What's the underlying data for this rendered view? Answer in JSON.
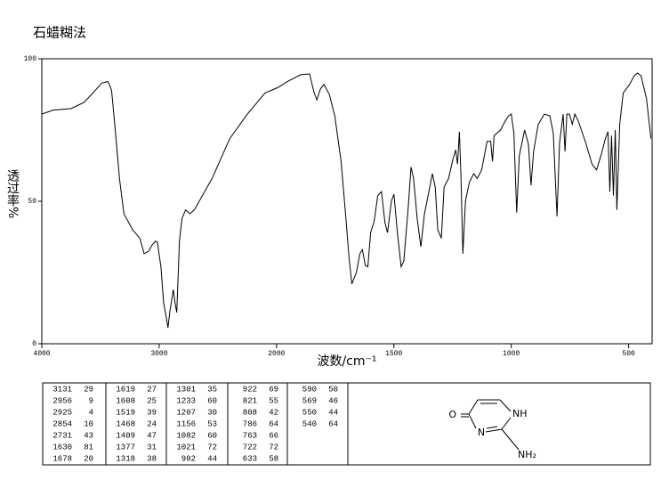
{
  "chart_data": {
    "type": "line",
    "title": "石蜡糊法",
    "x_label": "波数/cm⁻¹",
    "y_label": "透过率%",
    "color": "#000000",
    "xlim": [
      4000,
      400
    ],
    "xticks": [
      4000,
      3000,
      2000,
      1500,
      1000,
      500
    ],
    "ylim": [
      0,
      100
    ],
    "yticks": [
      0,
      50,
      100
    ],
    "x": [
      4000,
      3902,
      3752,
      3640,
      3564,
      3489,
      3436,
      3406,
      3376,
      3338,
      3300,
      3226,
      3165,
      3128,
      3090,
      3060,
      3030,
      3015,
      2985,
      2962,
      2940,
      2925,
      2910,
      2880,
      2865,
      2850,
      2827,
      2805,
      2774,
      2737,
      2700,
      2549,
      2398,
      2248,
      2098,
      1992,
      1954,
      1897,
      1859,
      1840,
      1828,
      1813,
      1798,
      1775,
      1752,
      1725,
      1706,
      1691,
      1679,
      1660,
      1645,
      1634,
      1622,
      1611,
      1599,
      1584,
      1569,
      1553,
      1538,
      1527,
      1511,
      1500,
      1485,
      1469,
      1458,
      1439,
      1427,
      1416,
      1401,
      1385,
      1370,
      1351,
      1336,
      1324,
      1313,
      1298,
      1286,
      1267,
      1248,
      1237,
      1229,
      1221,
      1214,
      1206,
      1195,
      1179,
      1160,
      1145,
      1126,
      1103,
      1088,
      1080,
      1073,
      1046,
      1027,
      1011,
      1000,
      989,
      977,
      966,
      943,
      927,
      916,
      905,
      885,
      859,
      836,
      821,
      805,
      794,
      779,
      771,
      763,
      752,
      740,
      729,
      714,
      683,
      656,
      637,
      618,
      599,
      588,
      580,
      573,
      565,
      557,
      550,
      538,
      523,
      496,
      477,
      462,
      447,
      424,
      405
    ],
    "values": [
      80.6,
      82,
      82.5,
      84.7,
      88,
      91.5,
      92,
      89,
      76,
      58,
      45.6,
      40,
      37,
      31.6,
      32.5,
      34.7,
      36,
      35.6,
      27,
      14.4,
      9.4,
      5.6,
      11,
      19,
      14.4,
      11,
      36,
      44,
      47,
      45.6,
      47,
      58,
      72,
      80.6,
      88,
      90,
      92,
      94.4,
      94.7,
      88,
      85.6,
      89.4,
      91,
      87.5,
      80,
      64,
      45.6,
      30,
      21,
      25,
      31.6,
      33,
      27.5,
      27,
      39,
      43,
      52,
      53.4,
      42.5,
      39,
      50,
      52.5,
      39,
      27,
      29,
      48,
      62,
      58,
      44,
      34,
      45.6,
      53.4,
      59.7,
      55,
      40,
      37,
      55,
      58,
      65,
      68,
      63,
      74.4,
      58,
      31.6,
      50,
      56.6,
      59.7,
      58,
      61,
      71,
      71,
      64,
      73,
      75,
      78,
      80,
      80.6,
      74,
      46,
      66,
      75,
      70,
      55.6,
      67.5,
      77,
      80.6,
      80,
      74,
      44.7,
      70.6,
      80.6,
      67.5,
      80.6,
      80.6,
      77,
      80.6,
      78,
      70.6,
      63,
      61,
      66,
      72,
      74.4,
      53.4,
      73,
      52,
      75,
      47,
      77,
      88,
      91,
      94,
      95,
      94,
      86,
      72
    ]
  },
  "table": {
    "columns": [
      [
        [
          3131,
          29
        ],
        [
          2956,
          9
        ],
        [
          2925,
          4
        ],
        [
          2854,
          10
        ],
        [
          2731,
          43
        ],
        [
          1630,
          81
        ],
        [
          1678,
          20
        ]
      ],
      [
        [
          1619,
          27
        ],
        [
          1608,
          25
        ],
        [
          1519,
          39
        ],
        [
          1468,
          24
        ],
        [
          1409,
          47
        ],
        [
          1377,
          31
        ],
        [
          1318,
          38
        ]
      ],
      [
        [
          1301,
          35
        ],
        [
          1233,
          60
        ],
        [
          1207,
          30
        ],
        [
          1156,
          53
        ],
        [
          1082,
          60
        ],
        [
          1021,
          72
        ],
        [
          982,
          44
        ]
      ],
      [
        [
          922,
          69
        ],
        [
          821,
          55
        ],
        [
          808,
          42
        ],
        [
          786,
          64
        ],
        [
          763,
          66
        ],
        [
          722,
          72
        ],
        [
          633,
          58
        ]
      ],
      [
        [
          590,
          50
        ],
        [
          569,
          46
        ],
        [
          550,
          44
        ],
        [
          540,
          64
        ]
      ]
    ]
  },
  "structure": {
    "labels": [
      "O",
      "NH",
      "N",
      "NH₂"
    ]
  }
}
